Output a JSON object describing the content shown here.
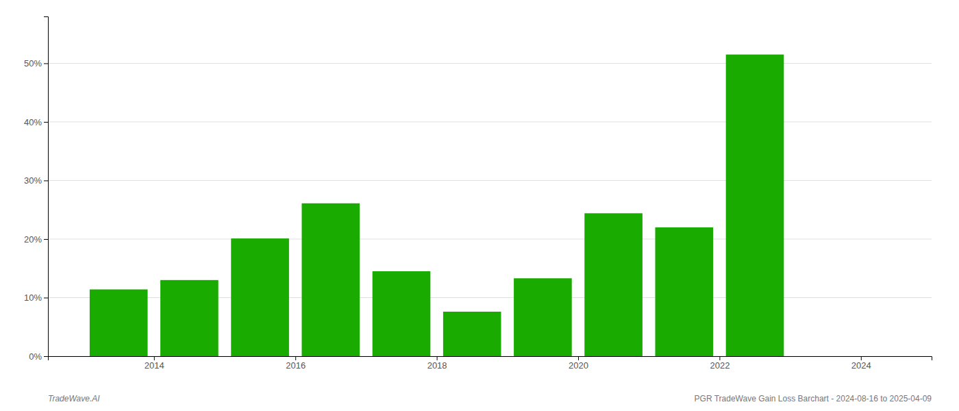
{
  "chart_data": {
    "type": "bar",
    "x": [
      2013.5,
      2014.5,
      2015.5,
      2016.5,
      2017.5,
      2018.5,
      2019.5,
      2020.5,
      2021.5,
      2022.5
    ],
    "values": [
      0.114,
      0.13,
      0.201,
      0.261,
      0.145,
      0.076,
      0.133,
      0.244,
      0.22,
      0.515
    ],
    "color": "#1aab00",
    "xlim": [
      2012.5,
      2025.0
    ],
    "xticks": [
      2014,
      2016,
      2018,
      2020,
      2022,
      2024
    ],
    "ylim": [
      0,
      0.58
    ],
    "yticks": [
      {
        "value": 0,
        "label": "0%"
      },
      {
        "value": 0.1,
        "label": "10%"
      },
      {
        "value": 0.2,
        "label": "20%"
      },
      {
        "value": 0.3,
        "label": "30%"
      },
      {
        "value": 0.4,
        "label": "40%"
      },
      {
        "value": 0.5,
        "label": "50%"
      }
    ],
    "grid": true,
    "annotations": [
      "TradeWave.AI",
      "PGR TradeWave Gain Loss Barchart - 2024-08-16 to 2025-04-09"
    ]
  }
}
